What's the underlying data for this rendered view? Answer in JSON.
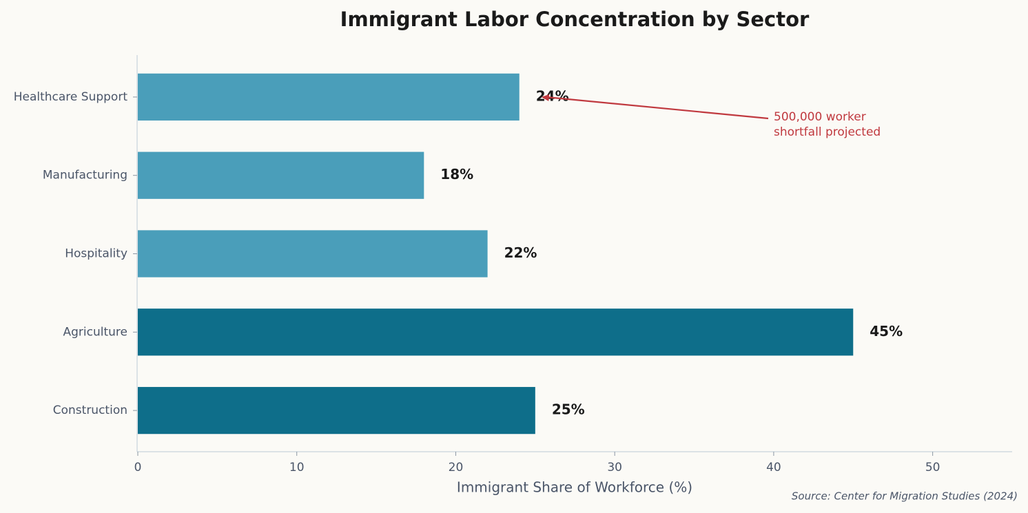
{
  "chart_data": {
    "type": "barh",
    "title": "Immigrant Labor Concentration by Sector",
    "x_label": "Immigrant Share of Workforce (%)",
    "source": "Source: Center for Migration Studies (2024)",
    "categories": [
      "Healthcare Support",
      "Manufacturing",
      "Hospitality",
      "Agriculture",
      "Construction"
    ],
    "values": [
      24,
      18,
      22,
      45,
      25
    ],
    "value_labels": [
      "24%",
      "18%",
      "22%",
      "45%",
      "25%"
    ],
    "colors": [
      "#4a9eba",
      "#4a9eba",
      "#4a9eba",
      "#0e6e8a",
      "#0e6e8a"
    ],
    "xlim": [
      0,
      55
    ],
    "xticks": [
      0,
      10,
      20,
      30,
      40,
      50
    ],
    "annotation": {
      "lines": [
        "500,000 worker",
        "shortfall projected"
      ],
      "color": "#c0393f"
    }
  }
}
